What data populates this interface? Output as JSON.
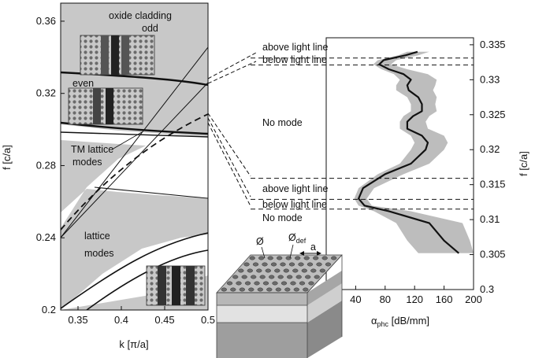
{
  "chart_data": [
    {
      "type": "line",
      "xlabel": "k [π/a]",
      "ylabel": "f [c/a]",
      "xlim": [
        0.33,
        0.5
      ],
      "ylim": [
        0.2,
        0.37
      ],
      "xticks": [
        0.35,
        0.4,
        0.45,
        0.5
      ],
      "xtick_labels": [
        "0.35",
        "0.4",
        "0.45",
        "0.5"
      ],
      "yticks": [
        0.2,
        0.24,
        0.28,
        0.32,
        0.36
      ],
      "ytick_labels": [
        "0.2",
        "0.24",
        "0.28",
        "0.32",
        "0.36"
      ],
      "annotations": {
        "oxide_cladding": "oxide cladding",
        "odd": "odd",
        "even": "even",
        "tm_lattice": "TM lattice",
        "tm_modes": "modes",
        "lattice": "lattice",
        "lattice_modes": "modes"
      },
      "series": [
        {
          "name": "odd",
          "x": [
            0.33,
            0.4,
            0.45,
            0.5
          ],
          "y": [
            0.334,
            0.333,
            0.332,
            0.329
          ]
        },
        {
          "name": "even",
          "x": [
            0.33,
            0.4,
            0.45,
            0.5
          ],
          "y": [
            0.306,
            0.303,
            0.302,
            0.301
          ]
        }
      ]
    },
    {
      "type": "line",
      "xlabel_symbol": "α",
      "xlabel_subscript": "phc",
      "xlabel_unit": " [dB/mm]",
      "ylabel": "f [c/a]",
      "xlim": [
        0,
        200
      ],
      "ylim": [
        0.3,
        0.336
      ],
      "xticks": [
        40,
        80,
        120,
        160,
        200
      ],
      "xtick_labels": [
        "40",
        "80",
        "120",
        "160",
        "200"
      ],
      "yticks": [
        0.3,
        0.305,
        0.31,
        0.315,
        0.32,
        0.325,
        0.33,
        0.335
      ],
      "ytick_labels": [
        "0.3",
        "0.305",
        "0.31",
        "0.315",
        "0.32",
        "0.325",
        "0.33",
        "0.335"
      ],
      "band_edges": [
        0.3331,
        0.3321,
        0.3159,
        0.3129,
        0.3115
      ],
      "annotations": {
        "above_1": "above light line",
        "below_1": "below light line",
        "no_mode_1": "No mode",
        "above_2": "above light line",
        "below_2": "below light line",
        "no_mode_2": "No mode"
      },
      "schematic": {
        "hole_label": "Ø",
        "defect_label": "Ø",
        "defect_subscript": "def",
        "lattice_label": "a"
      },
      "series": [
        {
          "x": [
            124,
            108,
            78,
            72,
            85,
            105,
            115,
            110,
            112,
            125,
            130,
            130,
            118,
            110,
            110,
            130,
            138,
            135,
            115,
            80,
            50,
            44,
            52,
            85,
            140,
            160,
            180
          ],
          "y": [
            0.334,
            0.3335,
            0.3328,
            0.3322,
            0.3315,
            0.3308,
            0.33,
            0.3292,
            0.3285,
            0.3275,
            0.3265,
            0.3255,
            0.3248,
            0.324,
            0.323,
            0.322,
            0.321,
            0.32,
            0.318,
            0.3165,
            0.3145,
            0.313,
            0.312,
            0.3112,
            0.3095,
            0.307,
            0.3052
          ]
        }
      ],
      "band_low": [
        110,
        98,
        70,
        64,
        75,
        92,
        100,
        95,
        95,
        110,
        115,
        115,
        105,
        100,
        100,
        115,
        120,
        115,
        100,
        70,
        44,
        38,
        44,
        65,
        95,
        110,
        125
      ],
      "band_high": [
        140,
        125,
        95,
        88,
        110,
        138,
        150,
        148,
        145,
        150,
        148,
        150,
        140,
        135,
        138,
        160,
        165,
        160,
        140,
        105,
        65,
        55,
        62,
        115,
        185,
        195,
        200
      ]
    }
  ]
}
